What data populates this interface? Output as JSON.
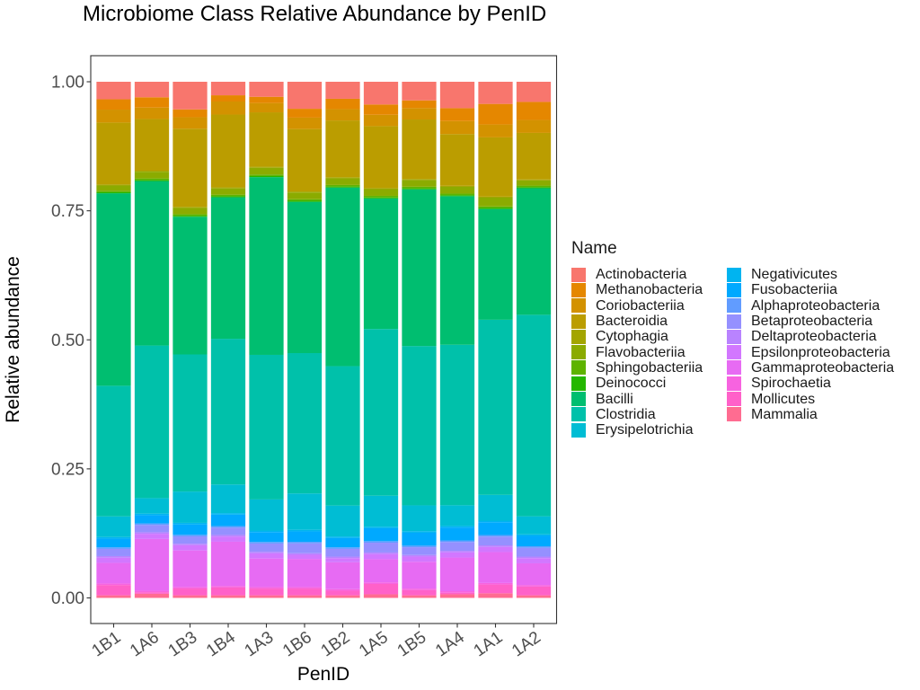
{
  "chart_data": {
    "type": "bar",
    "stacked": true,
    "title": "Microbiome Class Relative Abundance by PenID",
    "xlabel": "PenID",
    "ylabel": "Relative abundance",
    "ylim": [
      0,
      1.05
    ],
    "yticks": [
      "0.00",
      "0.25",
      "0.50",
      "0.75",
      "1.00"
    ],
    "grid": false,
    "legend_title": "Name",
    "legend_position": "right",
    "categories": [
      "1B1",
      "1A6",
      "1B3",
      "1B4",
      "1A3",
      "1B6",
      "1B2",
      "1A5",
      "1B5",
      "1A4",
      "1A1",
      "1A2"
    ],
    "series": [
      {
        "name": "Mammalia",
        "color": "#FF6C91",
        "values": [
          0.005,
          0.008,
          0.005,
          0.005,
          0.005,
          0.005,
          0.005,
          0.007,
          0.005,
          0.007,
          0.009,
          0.005
        ]
      },
      {
        "name": "Mollicutes",
        "color": "#FF61C9",
        "values": [
          0.02,
          0.003,
          0.013,
          0.015,
          0.013,
          0.013,
          0.009,
          0.02,
          0.01,
          0.003,
          0.017,
          0.017
        ]
      },
      {
        "name": "Spirochaetia",
        "color": "#F763E0",
        "values": [
          0.003,
          0.003,
          0.003,
          0.003,
          0.003,
          0.003,
          0.003,
          0.003,
          0.003,
          0.003,
          0.003,
          0.003
        ]
      },
      {
        "name": "Gammaproteobacteria",
        "color": "#E76BF3",
        "values": [
          0.04,
          0.1,
          0.07,
          0.085,
          0.055,
          0.054,
          0.052,
          0.045,
          0.052,
          0.065,
          0.06,
          0.042
        ]
      },
      {
        "name": "Epsilonproteobacteria",
        "color": "#D277FF",
        "values": [
          0.01,
          0.01,
          0.01,
          0.01,
          0.01,
          0.008,
          0.008,
          0.01,
          0.01,
          0.01,
          0.01,
          0.01
        ]
      },
      {
        "name": "Deltaproteobacteria",
        "color": "#B983FF",
        "values": [
          0.003,
          0.003,
          0.003,
          0.003,
          0.003,
          0.003,
          0.003,
          0.003,
          0.003,
          0.003,
          0.003,
          0.003
        ]
      },
      {
        "name": "Betaproteobacteria",
        "color": "#9590FF",
        "values": [
          0.014,
          0.014,
          0.014,
          0.014,
          0.016,
          0.019,
          0.015,
          0.019,
          0.015,
          0.017,
          0.017,
          0.017
        ]
      },
      {
        "name": "Alphaproteobacteria",
        "color": "#619CFF",
        "values": [
          0.003,
          0.003,
          0.003,
          0.003,
          0.003,
          0.003,
          0.003,
          0.003,
          0.003,
          0.003,
          0.003,
          0.003
        ]
      },
      {
        "name": "Fusobacteriia",
        "color": "#00A9FF",
        "values": [
          0.017,
          0.016,
          0.02,
          0.022,
          0.019,
          0.02,
          0.018,
          0.025,
          0.025,
          0.025,
          0.025,
          0.02
        ]
      },
      {
        "name": "Negativicutes",
        "color": "#00B4F0",
        "values": [
          0.003,
          0.003,
          0.003,
          0.003,
          0.003,
          0.003,
          0.003,
          0.003,
          0.003,
          0.003,
          0.003,
          0.003
        ]
      },
      {
        "name": "Erysipelotrichia",
        "color": "#00BDD4",
        "values": [
          0.04,
          0.03,
          0.06,
          0.055,
          0.06,
          0.07,
          0.06,
          0.06,
          0.05,
          0.04,
          0.05,
          0.035
        ]
      },
      {
        "name": "Clostridia",
        "color": "#00C1AA",
        "values": [
          0.253,
          0.295,
          0.263,
          0.28,
          0.279,
          0.27,
          0.27,
          0.323,
          0.308,
          0.31,
          0.34,
          0.39
        ]
      },
      {
        "name": "Bacilli",
        "color": "#00BE70",
        "values": [
          0.373,
          0.318,
          0.264,
          0.272,
          0.343,
          0.291,
          0.346,
          0.253,
          0.303,
          0.287,
          0.215,
          0.245
        ]
      },
      {
        "name": "Deinococci",
        "color": "#24B700",
        "values": [
          0.002,
          0.002,
          0.002,
          0.002,
          0.002,
          0.002,
          0.002,
          0.002,
          0.002,
          0.002,
          0.002,
          0.002
        ]
      },
      {
        "name": "Sphingobacteriia",
        "color": "#5EB300",
        "values": [
          0.003,
          0.003,
          0.003,
          0.003,
          0.003,
          0.003,
          0.003,
          0.003,
          0.003,
          0.003,
          0.003,
          0.003
        ]
      },
      {
        "name": "Flavobacteriia",
        "color": "#8BAB00",
        "values": [
          0.01,
          0.013,
          0.012,
          0.012,
          0.013,
          0.013,
          0.013,
          0.013,
          0.013,
          0.013,
          0.017,
          0.01
        ]
      },
      {
        "name": "Cytophagia",
        "color": "#A3A500",
        "values": [
          0.002,
          0.002,
          0.002,
          0.002,
          0.002,
          0.002,
          0.002,
          0.002,
          0.002,
          0.002,
          0.002,
          0.002
        ]
      },
      {
        "name": "Bacteroidia",
        "color": "#BB9D00",
        "values": [
          0.12,
          0.1,
          0.15,
          0.14,
          0.105,
          0.12,
          0.11,
          0.12,
          0.115,
          0.1,
          0.115,
          0.09
        ]
      },
      {
        "name": "Coriobacteriia",
        "color": "#D39200",
        "values": [
          0.025,
          0.022,
          0.022,
          0.025,
          0.018,
          0.022,
          0.022,
          0.022,
          0.022,
          0.025,
          0.025,
          0.025
        ]
      },
      {
        "name": "Methanobacteria",
        "color": "#E58700",
        "values": [
          0.02,
          0.02,
          0.015,
          0.012,
          0.012,
          0.017,
          0.02,
          0.02,
          0.015,
          0.025,
          0.04,
          0.035
        ]
      },
      {
        "name": "Actinobacteria",
        "color": "#F8766D",
        "values": [
          0.034,
          0.03,
          0.053,
          0.026,
          0.029,
          0.052,
          0.033,
          0.044,
          0.036,
          0.051,
          0.043,
          0.039
        ]
      }
    ],
    "legend_order": [
      "Actinobacteria",
      "Methanobacteria",
      "Coriobacteriia",
      "Bacteroidia",
      "Cytophagia",
      "Flavobacteriia",
      "Sphingobacteriia",
      "Deinococci",
      "Bacilli",
      "Clostridia",
      "Erysipelotrichia",
      "Negativicutes",
      "Fusobacteriia",
      "Alphaproteobacteria",
      "Betaproteobacteria",
      "Deltaproteobacteria",
      "Epsilonproteobacteria",
      "Gammaproteobacteria",
      "Spirochaetia",
      "Mollicutes",
      "Mammalia"
    ]
  }
}
